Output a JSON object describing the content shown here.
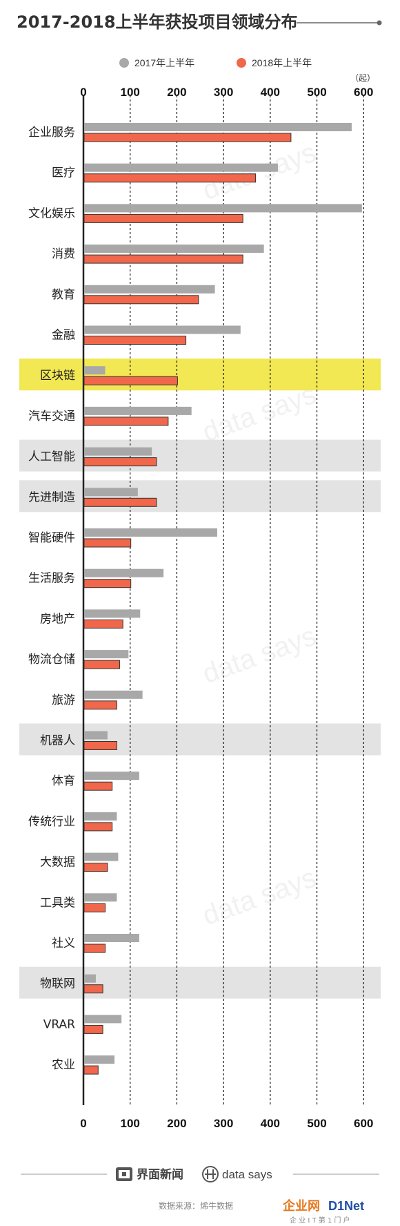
{
  "title": "2017-2018上半年获投项目领域分布",
  "unit_label": "（起）",
  "source": "数据来源：烯牛数据",
  "brand": {
    "jiemian": "界面新闻",
    "datasays": "data says"
  },
  "site_logo": {
    "main": "企业网",
    "accent": "D1Net",
    "sub": "企 业 I T 第 1 门 户"
  },
  "colors": {
    "series_2017": "#a8a8a8",
    "series_2018": "#f0674b",
    "highlight_yellow": "#f2e853",
    "highlight_gray": "#e3e3e3",
    "grid": "#222222"
  },
  "chart_data": {
    "type": "bar",
    "orientation": "horizontal",
    "title": "2017-2018上半年获投项目领域分布",
    "xlim": [
      0,
      620
    ],
    "ticks": [
      "0",
      "100",
      "200",
      "300",
      "400",
      "500",
      "600"
    ],
    "tick_values": [
      0,
      100,
      200,
      300,
      400,
      500,
      600
    ],
    "legend_position": "top-center",
    "categories": [
      "企业服务",
      "医疗",
      "文化娱乐",
      "消费",
      "教育",
      "金融",
      "区块链",
      "汽车交通",
      "人工智能",
      "先进制造",
      "智能硬件",
      "生活服务",
      "房地产",
      "物流仓储",
      "旅游",
      "机器人",
      "体育",
      "传统行业",
      "大数据",
      "工具类",
      "社义",
      "物联网",
      "VRAR",
      "农业"
    ],
    "series": [
      {
        "name": "2017年上半年",
        "values": [
          573,
          415,
          595,
          385,
          280,
          335,
          45,
          230,
          145,
          115,
          285,
          170,
          120,
          95,
          125,
          50,
          118,
          70,
          73,
          70,
          118,
          25,
          80,
          65
        ]
      },
      {
        "name": "2018年上半年",
        "values": [
          443,
          367,
          340,
          340,
          245,
          218,
          200,
          180,
          155,
          155,
          100,
          100,
          83,
          76,
          70,
          70,
          60,
          60,
          50,
          45,
          45,
          40,
          40,
          30
        ]
      }
    ],
    "highlights": [
      {
        "category": "区块链",
        "color": "yellow"
      },
      {
        "category": "人工智能",
        "color": "gray"
      },
      {
        "category": "先进制造",
        "color": "gray"
      },
      {
        "category": "机器人",
        "color": "gray"
      },
      {
        "category": "物联网",
        "color": "gray"
      }
    ]
  }
}
